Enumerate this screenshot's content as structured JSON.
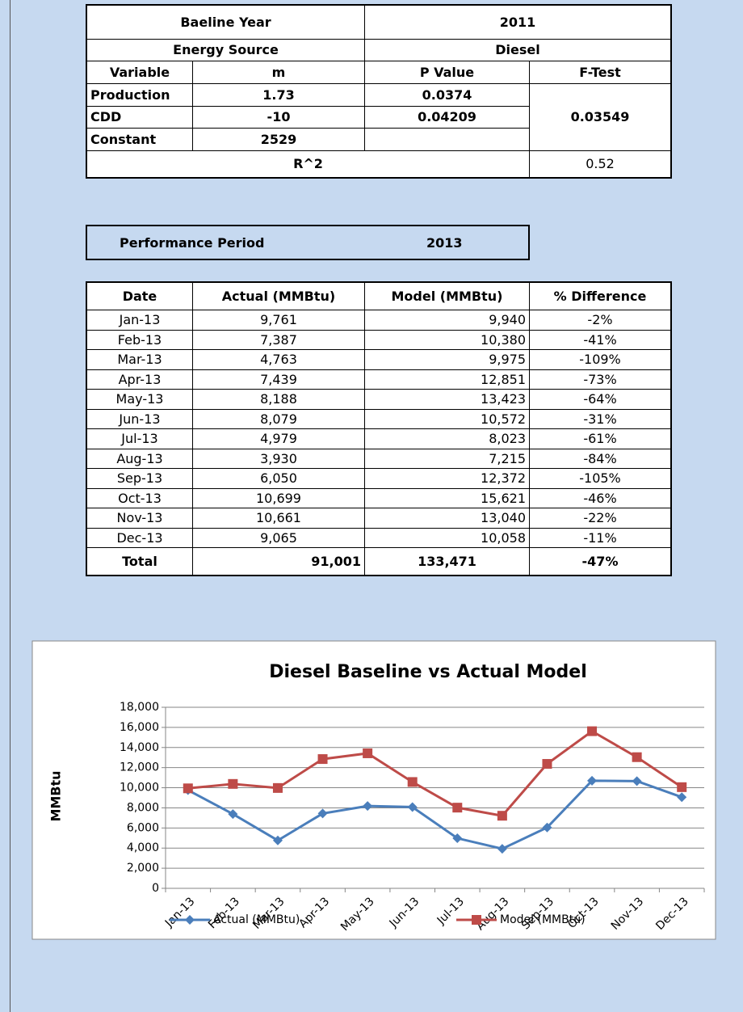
{
  "baseline_table": {
    "rows": [
      [
        "Baeline Year",
        "2011"
      ],
      [
        "Energy Source",
        "Diesel"
      ],
      [
        "Variable",
        "m",
        "P Value",
        "F-Test"
      ],
      [
        "Production",
        "1.73",
        "0.0374"
      ],
      [
        "CDD",
        "-10",
        "0.04209"
      ],
      [
        "Constant",
        "2529"
      ],
      [
        "R^2",
        "0.52"
      ]
    ],
    "f_test_value": "0.03549"
  },
  "performance_period": {
    "label": "Performance Period",
    "year": "2013"
  },
  "performance_table": {
    "header": [
      "Date",
      "Actual (MMBtu)",
      "Model (MMBtu)",
      "% Difference"
    ],
    "rows": [
      [
        "Jan-13",
        "9,761",
        "9,940",
        "-2%"
      ],
      [
        "Feb-13",
        "7,387",
        "10,380",
        "-41%"
      ],
      [
        "Mar-13",
        "4,763",
        "9,975",
        "-109%"
      ],
      [
        "Apr-13",
        "7,439",
        "12,851",
        "-73%"
      ],
      [
        "May-13",
        "8,188",
        "13,423",
        "-64%"
      ],
      [
        "Jun-13",
        "8,079",
        "10,572",
        "-31%"
      ],
      [
        "Jul-13",
        "4,979",
        "8,023",
        "-61%"
      ],
      [
        "Aug-13",
        "3,930",
        "7,215",
        "-84%"
      ],
      [
        "Sep-13",
        "6,050",
        "12,372",
        "-105%"
      ],
      [
        "Oct-13",
        "10,699",
        "15,621",
        "-46%"
      ],
      [
        "Nov-13",
        "10,661",
        "13,040",
        "-22%"
      ],
      [
        "Dec-13",
        "9,065",
        "10,058",
        "-11%"
      ]
    ],
    "total": [
      "Total",
      "91,001",
      "133,471",
      "-47%"
    ]
  },
  "chart_data": {
    "type": "line",
    "title": "Diesel Baseline vs Actual Model",
    "y_label": "MMBtu",
    "categories": [
      "Jan-13",
      "Feb-13",
      "Mar-13",
      "Apr-13",
      "May-13",
      "Jun-13",
      "Jul-13",
      "Aug-13",
      "Sep-13",
      "Oct-13",
      "Nov-13",
      "Dec-13"
    ],
    "series": [
      {
        "name": "Actual (MMBtu)",
        "color": "#4a7ebb",
        "marker": "diamond",
        "values": [
          9761,
          7387,
          4763,
          7439,
          8188,
          8079,
          4979,
          3930,
          6050,
          10699,
          10661,
          9065
        ]
      },
      {
        "name": "Model (MMBtu)",
        "color": "#be4b48",
        "marker": "square",
        "values": [
          9940,
          10380,
          9975,
          12851,
          13423,
          10572,
          8023,
          7215,
          12372,
          15621,
          13040,
          10058
        ]
      }
    ],
    "ylim": [
      0,
      18000
    ],
    "yticks": [
      0,
      {
        "value": 2000,
        "label": "2,000"
      },
      {
        "value": 4000,
        "label": "4,000"
      },
      {
        "value": 6000,
        "label": "6,000"
      },
      {
        "value": 8000,
        "label": "8,000"
      },
      {
        "value": 10000,
        "label": "10,000"
      },
      {
        "value": 12000,
        "label": "12,000"
      },
      {
        "value": 14000,
        "label": "14,000"
      },
      {
        "value": 16000,
        "label": "16,000"
      },
      {
        "value": 18000,
        "label": "18,000"
      }
    ],
    "grid": true,
    "legend": "bottom"
  }
}
